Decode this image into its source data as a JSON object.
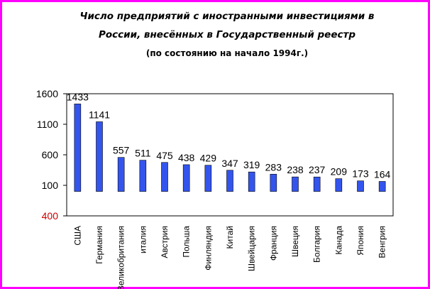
{
  "title": {
    "line1": "Число предприятий с иностранными инвестициями в",
    "line2": "России, внесённых в Государственный реестр",
    "line3": "(по состоянию на начало 1994г.)"
  },
  "colors": {
    "bar": "#3355ee",
    "bar_stroke": "#000000",
    "frame": "#ff00ff",
    "negative_tick": "#cc0000"
  },
  "chart_data": {
    "type": "bar",
    "categories": [
      "США",
      "Германия",
      "Великобритания",
      "италия",
      "Австрия",
      "Польша",
      "Финляндия",
      "Китай",
      "Швейцария",
      "Франция",
      "Швеция",
      "Болгария",
      "Канада",
      "Япония",
      "Венгрия"
    ],
    "values": [
      1433,
      1141,
      557,
      511,
      475,
      438,
      429,
      347,
      319,
      283,
      238,
      237,
      209,
      173,
      164
    ],
    "value_labels": [
      "1433",
      "1141",
      "557",
      "511",
      "475",
      "438",
      "429",
      "347",
      "319",
      "283",
      "238",
      "237",
      "209",
      "173",
      "164"
    ],
    "y_tick_values": [
      1600,
      1100,
      600,
      100,
      -400
    ],
    "y_tick_labels": [
      "1600",
      "1100",
      "600",
      "100",
      "400"
    ],
    "ylim": [
      -400,
      1600
    ],
    "grid": false,
    "legend": false
  }
}
